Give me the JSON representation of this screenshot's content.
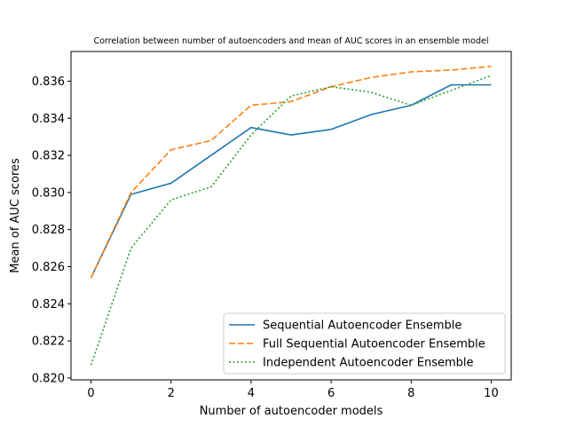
{
  "chart_data": {
    "type": "line",
    "title": "Correlation between number of autoencoders and mean of AUC scores in an ensemble model",
    "xlabel": "Number of autoencoder models",
    "ylabel": "Mean of AUC scores",
    "x": [
      0,
      1,
      2,
      3,
      4,
      5,
      6,
      7,
      8,
      9,
      10
    ],
    "xlim": [
      -0.5,
      10.5
    ],
    "ylim": [
      0.8199,
      0.8376
    ],
    "xticks": [
      0,
      2,
      4,
      6,
      8,
      10
    ],
    "yticks": [
      0.82,
      0.822,
      0.824,
      0.826,
      0.828,
      0.83,
      0.832,
      0.834,
      0.836
    ],
    "xtick_labels": [
      "0",
      "2",
      "4",
      "6",
      "8",
      "10"
    ],
    "ytick_labels": [
      "0.820",
      "0.822",
      "0.824",
      "0.826",
      "0.828",
      "0.830",
      "0.832",
      "0.834",
      "0.836"
    ],
    "grid": false,
    "legend_position": "lower-right",
    "series": [
      {
        "name": "Sequential Autoencoder Ensemble",
        "color": "#1f77b4",
        "linestyle": "solid",
        "values": [
          0.8254,
          0.8299,
          0.8305,
          0.832,
          0.8335,
          0.8331,
          0.8334,
          0.8342,
          0.8347,
          0.8358,
          0.8358
        ]
      },
      {
        "name": "Full Sequential Autoencoder Ensemble",
        "color": "#ff7f0e",
        "linestyle": "dashed",
        "values": [
          0.8254,
          0.83,
          0.8323,
          0.8328,
          0.8347,
          0.8349,
          0.8357,
          0.8362,
          0.8365,
          0.8366,
          0.8368
        ]
      },
      {
        "name": "Independent Autoencoder Ensemble",
        "color": "#2ca02c",
        "linestyle": "dotted",
        "values": [
          0.8207,
          0.827,
          0.8296,
          0.8303,
          0.8331,
          0.8352,
          0.8357,
          0.8354,
          0.8347,
          0.8355,
          0.8363
        ]
      }
    ]
  }
}
